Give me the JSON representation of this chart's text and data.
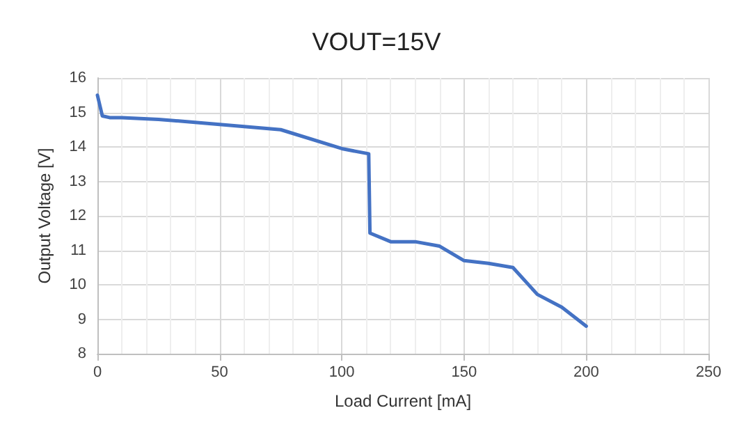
{
  "chart_data": {
    "type": "line",
    "title": "VOUT=15V",
    "xlabel": "Load Current [mA]",
    "ylabel": "Output Voltage [V]",
    "x": [
      0,
      2,
      5,
      10,
      25,
      50,
      75,
      100,
      111,
      111.5,
      120,
      130,
      140,
      150,
      160,
      170,
      180,
      190,
      200
    ],
    "series": [
      {
        "color": "#4472c4",
        "values": [
          15.5,
          14.9,
          14.85,
          14.85,
          14.8,
          14.65,
          14.5,
          13.95,
          13.8,
          11.5,
          11.25,
          11.25,
          11.12,
          10.7,
          10.62,
          10.5,
          9.72,
          9.35,
          8.8
        ]
      }
    ],
    "xlim": [
      0,
      250
    ],
    "xticks": [
      0,
      50,
      100,
      150,
      200,
      250
    ],
    "ylim": [
      8,
      16
    ],
    "yticks": [
      8,
      9,
      10,
      11,
      12,
      13,
      14,
      15,
      16
    ],
    "grid": true,
    "marker": "none",
    "line_style": "solid"
  }
}
